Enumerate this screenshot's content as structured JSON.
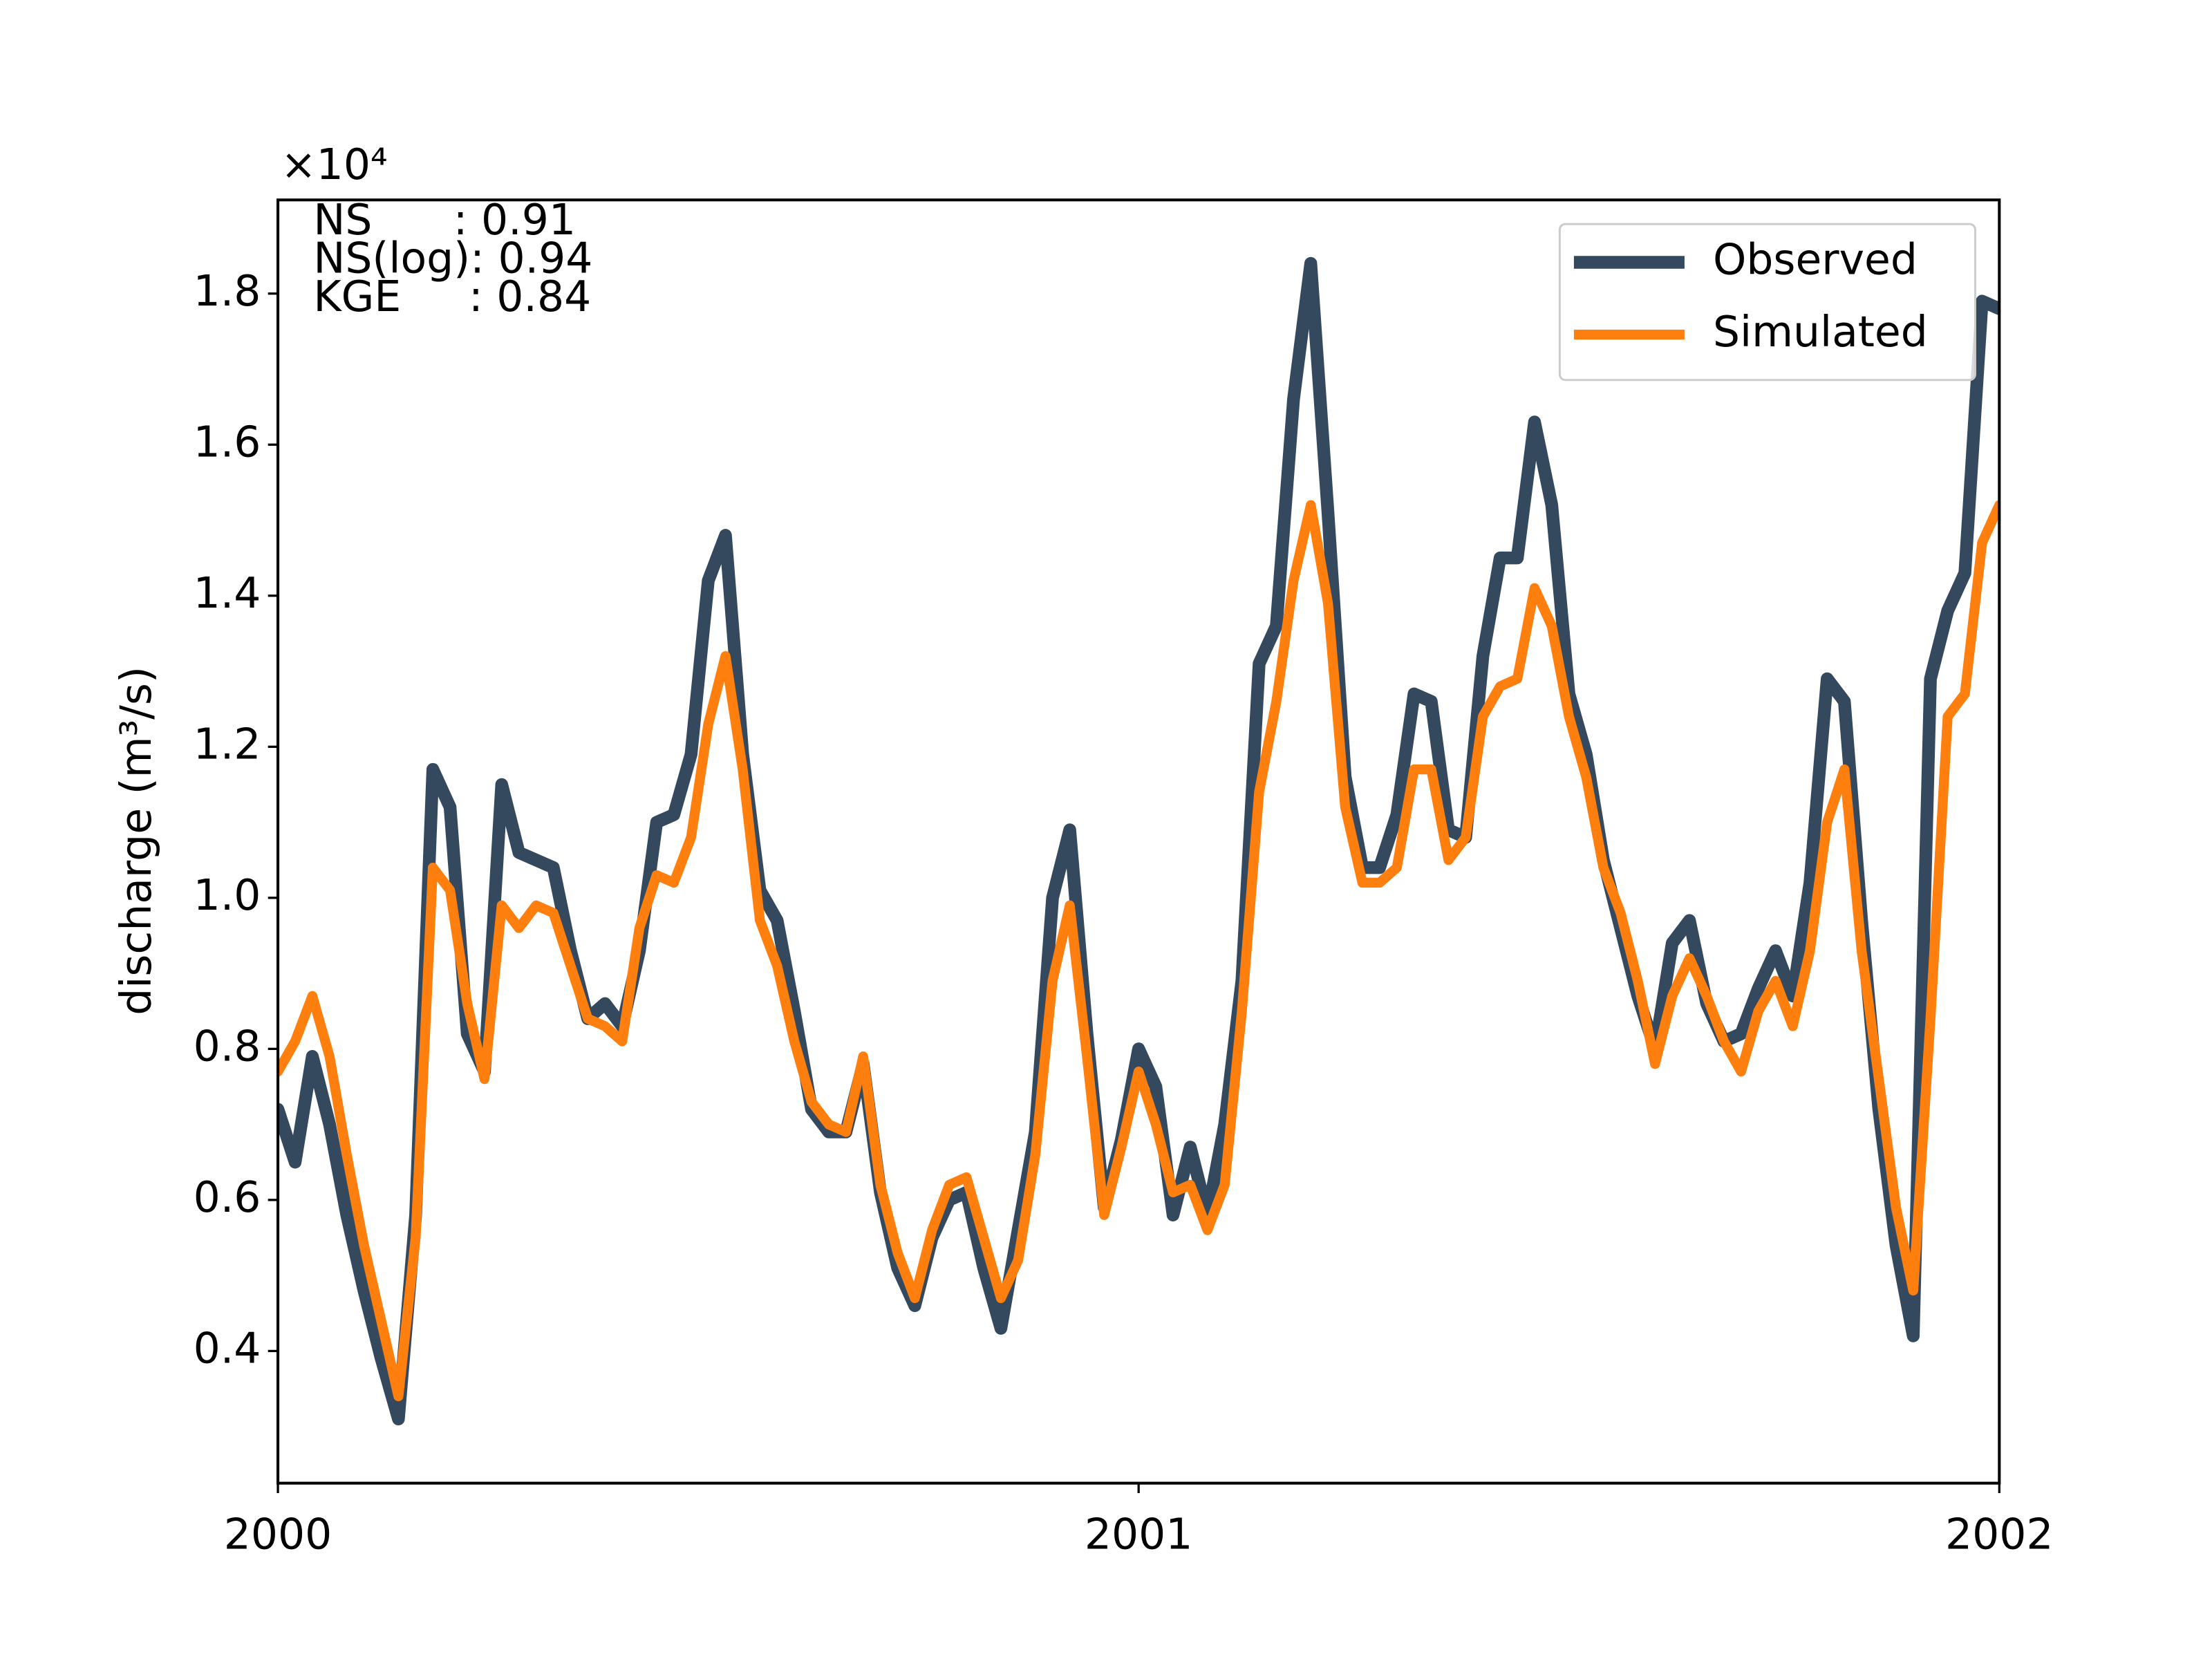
{
  "chart_data": {
    "type": "line",
    "y_label": "discharge (m³/s)",
    "y_scale_label": "×10⁴",
    "annotations": [
      "NS      : 0.91",
      "NS(log): 0.94",
      "KGE     : 0.84"
    ],
    "legend": "upper right",
    "grid": false,
    "xlim": [
      2000,
      2002
    ],
    "xticks": [
      2000,
      2001,
      2002
    ],
    "ylim": [
      0.225,
      1.924
    ],
    "yticks": [
      0.4,
      0.6,
      0.8,
      {
        "value": 1,
        "label": "1.0"
      },
      1.2,
      1.4,
      1.6,
      1.8
    ],
    "x": [
      2000,
      2000.02,
      2000.04,
      2000.06,
      2000.08,
      2000.1,
      2000.12,
      2000.14,
      2000.16,
      2000.18,
      2000.2,
      2000.22,
      2000.24,
      2000.26,
      2000.28,
      2000.3,
      2000.32,
      2000.34,
      2000.36,
      2000.38,
      2000.4,
      2000.42,
      2000.44,
      2000.46,
      2000.48,
      2000.5,
      2000.52,
      2000.54,
      2000.56,
      2000.58,
      2000.6,
      2000.62,
      2000.64,
      2000.66,
      2000.68,
      2000.7,
      2000.72,
      2000.74,
      2000.76,
      2000.78,
      2000.8,
      2000.82,
      2000.84,
      2000.86,
      2000.88,
      2000.9,
      2000.92,
      2000.94,
      2000.96,
      2000.98,
      2001,
      2001.02,
      2001.04,
      2001.06,
      2001.08,
      2001.1,
      2001.12,
      2001.14,
      2001.16,
      2001.18,
      2001.2,
      2001.22,
      2001.24,
      2001.26,
      2001.28,
      2001.3,
      2001.32,
      2001.34,
      2001.36,
      2001.38,
      2001.4,
      2001.42,
      2001.44,
      2001.46,
      2001.48,
      2001.5,
      2001.52,
      2001.54,
      2001.56,
      2001.58,
      2001.6,
      2001.62,
      2001.64,
      2001.66,
      2001.68,
      2001.7,
      2001.72,
      2001.74,
      2001.76,
      2001.78,
      2001.8,
      2001.82,
      2001.84,
      2001.86,
      2001.88,
      2001.9,
      2001.92,
      2001.94,
      2001.96,
      2001.98,
      2002
    ],
    "series": [
      {
        "name": "Observed",
        "color": "#34495e",
        "width": 9,
        "values": [
          0.72,
          0.65,
          0.79,
          0.7,
          0.58,
          0.48,
          0.39,
          0.31,
          0.58,
          1.17,
          1.12,
          0.82,
          0.77,
          1.15,
          1.06,
          1.05,
          1.04,
          0.93,
          0.84,
          0.86,
          0.83,
          0.93,
          1.1,
          1.11,
          1.19,
          1.42,
          1.48,
          1.19,
          1.01,
          0.97,
          0.85,
          0.72,
          0.69,
          0.69,
          0.78,
          0.61,
          0.51,
          0.46,
          0.55,
          0.6,
          0.61,
          0.51,
          0.43,
          0.56,
          0.69,
          1.0,
          1.09,
          0.82,
          0.59,
          0.68,
          0.8,
          0.75,
          0.58,
          0.67,
          0.58,
          0.7,
          0.89,
          1.31,
          1.36,
          1.66,
          1.84,
          1.51,
          1.16,
          1.04,
          1.04,
          1.11,
          1.27,
          1.26,
          1.09,
          1.08,
          1.32,
          1.45,
          1.45,
          1.63,
          1.52,
          1.27,
          1.19,
          1.05,
          0.96,
          0.87,
          0.8,
          0.94,
          0.97,
          0.86,
          0.81,
          0.82,
          0.88,
          0.93,
          0.87,
          1.02,
          1.29,
          1.26,
          0.97,
          0.72,
          0.54,
          0.42,
          1.29,
          1.38,
          1.43,
          1.79,
          1.78
        ]
      },
      {
        "name": "Simulated",
        "color": "#ff7f0e",
        "width": 7,
        "values": [
          0.77,
          0.81,
          0.87,
          0.79,
          0.66,
          0.54,
          0.44,
          0.34,
          0.55,
          1.04,
          1.01,
          0.86,
          0.76,
          0.99,
          0.96,
          0.99,
          0.98,
          0.91,
          0.84,
          0.83,
          0.81,
          0.96,
          1.03,
          1.02,
          1.08,
          1.23,
          1.32,
          1.17,
          0.97,
          0.91,
          0.81,
          0.73,
          0.7,
          0.69,
          0.79,
          0.62,
          0.53,
          0.47,
          0.56,
          0.62,
          0.63,
          0.55,
          0.47,
          0.52,
          0.66,
          0.89,
          0.99,
          0.79,
          0.58,
          0.67,
          0.77,
          0.7,
          0.61,
          0.62,
          0.56,
          0.62,
          0.85,
          1.14,
          1.26,
          1.42,
          1.52,
          1.39,
          1.12,
          1.02,
          1.02,
          1.04,
          1.17,
          1.17,
          1.05,
          1.08,
          1.24,
          1.28,
          1.29,
          1.41,
          1.36,
          1.24,
          1.16,
          1.04,
          0.98,
          0.89,
          0.78,
          0.87,
          0.92,
          0.87,
          0.81,
          0.77,
          0.85,
          0.89,
          0.83,
          0.93,
          1.1,
          1.17,
          0.93,
          0.76,
          0.59,
          0.48,
          0.84,
          1.24,
          1.27,
          1.47,
          1.52
        ]
      }
    ]
  }
}
